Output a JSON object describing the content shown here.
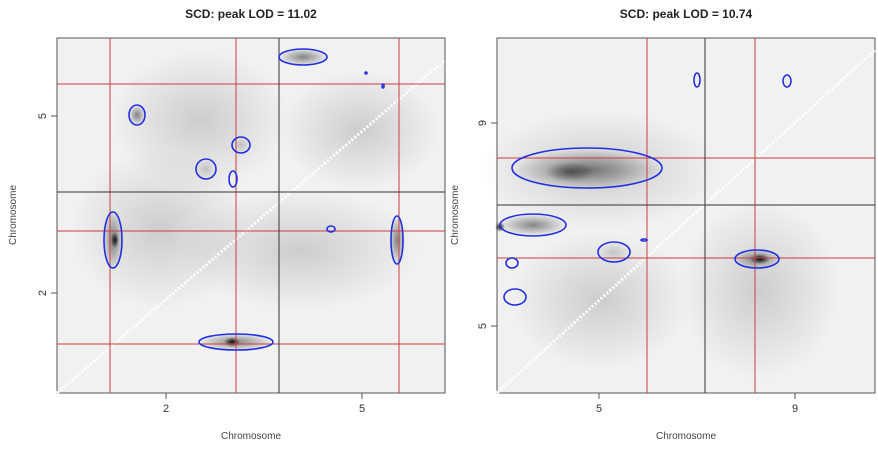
{
  "panels": [
    {
      "title": "SCD: peak LOD = 11.02",
      "x_label": "Chromosome",
      "y_label": "Chromosome",
      "x_ticks": [
        "2",
        "5"
      ],
      "y_ticks": [
        "5",
        "2"
      ]
    },
    {
      "title": "SCD: peak LOD = 10.74",
      "x_label": "Chromosome",
      "y_label": "Chromosome",
      "x_ticks": [
        "5",
        "9"
      ],
      "y_ticks": [
        "9",
        "5"
      ]
    }
  ]
}
